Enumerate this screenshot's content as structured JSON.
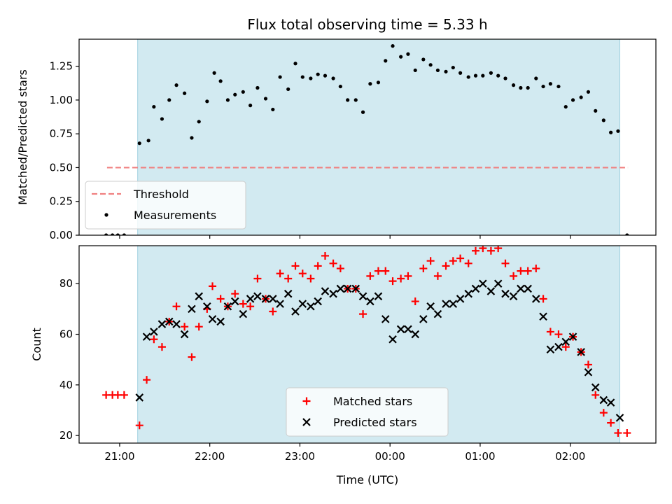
{
  "chart_data": [
    {
      "type": "scatter",
      "panel": "top",
      "title": "Flux total observing time = 5.33 h",
      "xlabel": "",
      "ylabel": "Matched/Predicted stars",
      "ylim": [
        0,
        1.45
      ],
      "yticks": [
        0.0,
        0.25,
        0.5,
        0.75,
        1.0,
        1.25
      ],
      "ytick_labels": [
        "0.00",
        "0.25",
        "0.50",
        "0.75",
        "1.00",
        "1.25"
      ],
      "observing_window_hours": [
        21.2,
        26.55
      ],
      "threshold": {
        "name": "Threshold",
        "value": 0.5,
        "x_range": [
          20.86,
          26.64
        ],
        "color": "#f08080"
      },
      "legend_position": "lower-left",
      "series": [
        {
          "name": "Measurements",
          "color": "#000000",
          "x": [
            20.85,
            20.92,
            20.98,
            21.05,
            21.22,
            21.32,
            21.38,
            21.47,
            21.55,
            21.63,
            21.72,
            21.8,
            21.88,
            21.97,
            22.05,
            22.12,
            22.2,
            22.28,
            22.37,
            22.45,
            22.53,
            22.62,
            22.7,
            22.78,
            22.87,
            22.95,
            23.03,
            23.12,
            23.2,
            23.28,
            23.37,
            23.45,
            23.53,
            23.62,
            23.7,
            23.78,
            23.87,
            23.95,
            24.03,
            24.12,
            24.2,
            24.28,
            24.37,
            24.45,
            24.53,
            24.62,
            24.7,
            24.78,
            24.87,
            24.95,
            25.03,
            25.12,
            25.2,
            25.28,
            25.37,
            25.45,
            25.53,
            25.62,
            25.7,
            25.78,
            25.87,
            25.95,
            26.03,
            26.12,
            26.2,
            26.28,
            26.37,
            26.45,
            26.53,
            26.63
          ],
          "y": [
            0.0,
            0.0,
            0.0,
            0.0,
            0.68,
            0.7,
            0.95,
            0.86,
            1.0,
            1.11,
            1.05,
            0.72,
            0.84,
            0.99,
            1.2,
            1.14,
            1.0,
            1.04,
            1.06,
            0.96,
            1.09,
            1.01,
            0.93,
            1.17,
            1.08,
            1.27,
            1.17,
            1.16,
            1.19,
            1.18,
            1.16,
            1.1,
            1.0,
            1.0,
            0.91,
            1.12,
            1.13,
            1.29,
            1.4,
            1.32,
            1.34,
            1.22,
            1.3,
            1.26,
            1.22,
            1.21,
            1.24,
            1.2,
            1.17,
            1.18,
            1.18,
            1.2,
            1.18,
            1.16,
            1.11,
            1.09,
            1.09,
            1.16,
            1.1,
            1.12,
            1.1,
            0.95,
            1.0,
            1.02,
            1.06,
            0.92,
            0.85,
            0.76,
            0.77,
            0.0
          ]
        }
      ]
    },
    {
      "type": "scatter",
      "panel": "bottom",
      "xlabel": "Time (UTC)",
      "ylabel": "Count",
      "xlim": [
        20.55,
        26.95
      ],
      "ylim": [
        17,
        95
      ],
      "yticks": [
        20,
        40,
        60,
        80
      ],
      "ytick_labels": [
        "20",
        "40",
        "60",
        "80"
      ],
      "xticks": [
        21,
        22,
        23,
        24,
        25,
        26
      ],
      "xtick_labels": [
        "21:00",
        "22:00",
        "23:00",
        "00:00",
        "01:00",
        "02:00"
      ],
      "observing_window_hours": [
        21.2,
        26.55
      ],
      "legend_position": "lower-center",
      "series": [
        {
          "name": "Matched stars",
          "marker": "plus",
          "color": "#ff0000",
          "x": [
            20.85,
            20.92,
            20.98,
            21.05,
            21.22,
            21.3,
            21.38,
            21.47,
            21.55,
            21.63,
            21.72,
            21.8,
            21.88,
            21.97,
            22.03,
            22.12,
            22.2,
            22.28,
            22.37,
            22.45,
            22.53,
            22.62,
            22.7,
            22.78,
            22.87,
            22.95,
            23.03,
            23.12,
            23.2,
            23.28,
            23.37,
            23.45,
            23.53,
            23.62,
            23.7,
            23.78,
            23.87,
            23.95,
            24.03,
            24.12,
            24.2,
            24.28,
            24.37,
            24.45,
            24.53,
            24.62,
            24.7,
            24.78,
            24.87,
            24.95,
            25.03,
            25.12,
            25.2,
            25.28,
            25.37,
            25.45,
            25.53,
            25.62,
            25.7,
            25.78,
            25.87,
            25.95,
            26.03,
            26.12,
            26.2,
            26.28,
            26.37,
            26.45,
            26.53,
            26.63
          ],
          "y": [
            36,
            36,
            36,
            36,
            24,
            42,
            58,
            55,
            65,
            71,
            63,
            51,
            63,
            70,
            79,
            74,
            71,
            76,
            72,
            71,
            82,
            74,
            69,
            84,
            82,
            87,
            84,
            82,
            87,
            91,
            88,
            86,
            78,
            78,
            68,
            83,
            85,
            85,
            81,
            82,
            83,
            73,
            86,
            89,
            83,
            87,
            89,
            90,
            88,
            93,
            94,
            93,
            94,
            88,
            83,
            85,
            85,
            86,
            74,
            61,
            60,
            55,
            59,
            53,
            48,
            36,
            29,
            25,
            21,
            21
          ]
        },
        {
          "name": "Predicted stars",
          "marker": "x",
          "color": "#000000",
          "x": [
            21.22,
            21.3,
            21.38,
            21.47,
            21.55,
            21.63,
            21.72,
            21.8,
            21.88,
            21.97,
            22.03,
            22.12,
            22.2,
            22.28,
            22.37,
            22.45,
            22.53,
            22.62,
            22.7,
            22.78,
            22.87,
            22.95,
            23.03,
            23.12,
            23.2,
            23.28,
            23.37,
            23.45,
            23.53,
            23.62,
            23.7,
            23.78,
            23.87,
            23.95,
            24.03,
            24.12,
            24.2,
            24.28,
            24.37,
            24.45,
            24.53,
            24.62,
            24.7,
            24.78,
            24.87,
            24.95,
            25.03,
            25.12,
            25.2,
            25.28,
            25.37,
            25.45,
            25.53,
            25.62,
            25.7,
            25.78,
            25.87,
            25.95,
            26.03,
            26.12,
            26.2,
            26.28,
            26.37,
            26.45,
            26.55
          ],
          "y": [
            35,
            59,
            61,
            64,
            65,
            64,
            60,
            70,
            75,
            71,
            66,
            65,
            71,
            73,
            68,
            74,
            75,
            74,
            74,
            72,
            76,
            69,
            72,
            71,
            73,
            77,
            76,
            78,
            78,
            78,
            75,
            73,
            75,
            66,
            58,
            62,
            62,
            60,
            66,
            71,
            68,
            72,
            72,
            74,
            76,
            78,
            80,
            77,
            80,
            76,
            75,
            78,
            78,
            74,
            67,
            54,
            55,
            57,
            59,
            53,
            45,
            39,
            34,
            33,
            27
          ]
        }
      ]
    }
  ]
}
